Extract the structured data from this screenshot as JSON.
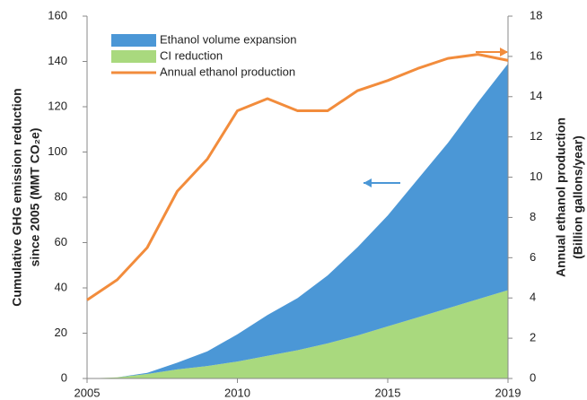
{
  "chart_data": {
    "type": "area",
    "x": [
      2005,
      2006,
      2007,
      2008,
      2009,
      2010,
      2011,
      2012,
      2013,
      2014,
      2015,
      2016,
      2017,
      2018,
      2019
    ],
    "xlim": [
      2005,
      2019
    ],
    "xticks": [
      2005,
      2010,
      2015,
      2019
    ],
    "ylim": [
      0,
      160
    ],
    "yticks": [
      0,
      20,
      40,
      60,
      80,
      100,
      120,
      140,
      160
    ],
    "y2lim": [
      0,
      18
    ],
    "y2ticks": [
      0,
      2,
      4,
      6,
      8,
      10,
      12,
      14,
      16,
      18
    ],
    "ylabel": [
      "Cumulative GHG emission reduction",
      "since 2005 (MMT CO₂e)"
    ],
    "y2label": [
      "Annual ethanol production",
      "(Billion gallons/year)"
    ],
    "series": [
      {
        "name": "Ethanol volume expansion",
        "type": "area",
        "color": "#4b97d6",
        "values": [
          0,
          0,
          0.5,
          3,
          6.5,
          12,
          18,
          23,
          30,
          39,
          49,
          61,
          73,
          87,
          100
        ]
      },
      {
        "name": "CI reduction",
        "type": "area",
        "color": "#a9d97e",
        "values": [
          0,
          0.5,
          2,
          4,
          5.5,
          7.5,
          10,
          12.5,
          15.5,
          19,
          23,
          27,
          31,
          35,
          39
        ]
      },
      {
        "name": "Annual ethanol production",
        "type": "line",
        "axis": "y2",
        "color": "#f28c3c",
        "values": [
          3.9,
          4.9,
          6.5,
          9.3,
          10.9,
          13.3,
          13.9,
          13.3,
          13.3,
          14.3,
          14.8,
          15.4,
          15.9,
          16.1,
          15.8
        ]
      }
    ]
  }
}
